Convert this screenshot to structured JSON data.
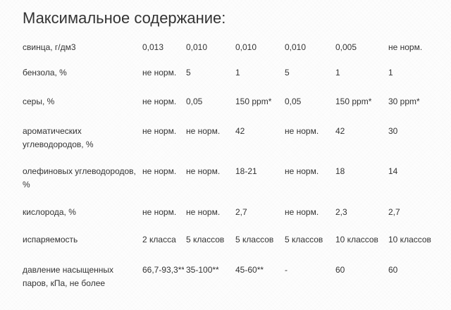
{
  "heading": "Максимальное содержание:",
  "rows": [
    {
      "label": "свинца, г/дм3",
      "values": [
        "0,013",
        "0,010",
        "0,010",
        "0,010",
        "0,005",
        "не норм."
      ]
    },
    {
      "label": "бензола, %",
      "values": [
        "не норм.",
        "5",
        "1",
        "5",
        "1",
        "1"
      ]
    },
    {
      "label": "серы, %",
      "values": [
        "не норм.",
        "0,05",
        "150 ppm*",
        "0,05",
        "150 ppm*",
        "30 ppm*"
      ]
    },
    {
      "label": "ароматических углеводородов, %",
      "values": [
        "не норм.",
        "не норм.",
        "42",
        "не норм.",
        "42",
        "30"
      ]
    },
    {
      "label": "олефиновых углеводородов, %",
      "values": [
        "не норм.",
        "не норм.",
        "18-21",
        "не норм.",
        "18",
        "14"
      ]
    },
    {
      "label": "кислорода, %",
      "values": [
        "не норм.",
        "не норм.",
        "2,7",
        "не норм.",
        "2,3",
        "2,7"
      ]
    },
    {
      "label": "испаряемость",
      "values": [
        "2 класса",
        "5 классов",
        "5 классов",
        "5 классов",
        "10 классов",
        "10 классов"
      ]
    },
    {
      "label": "давление насыщенных паров, кПа, не более",
      "values": [
        "66,7-93,3**",
        "35-100**",
        "45-60**",
        "-",
        "60",
        "60"
      ]
    }
  ]
}
